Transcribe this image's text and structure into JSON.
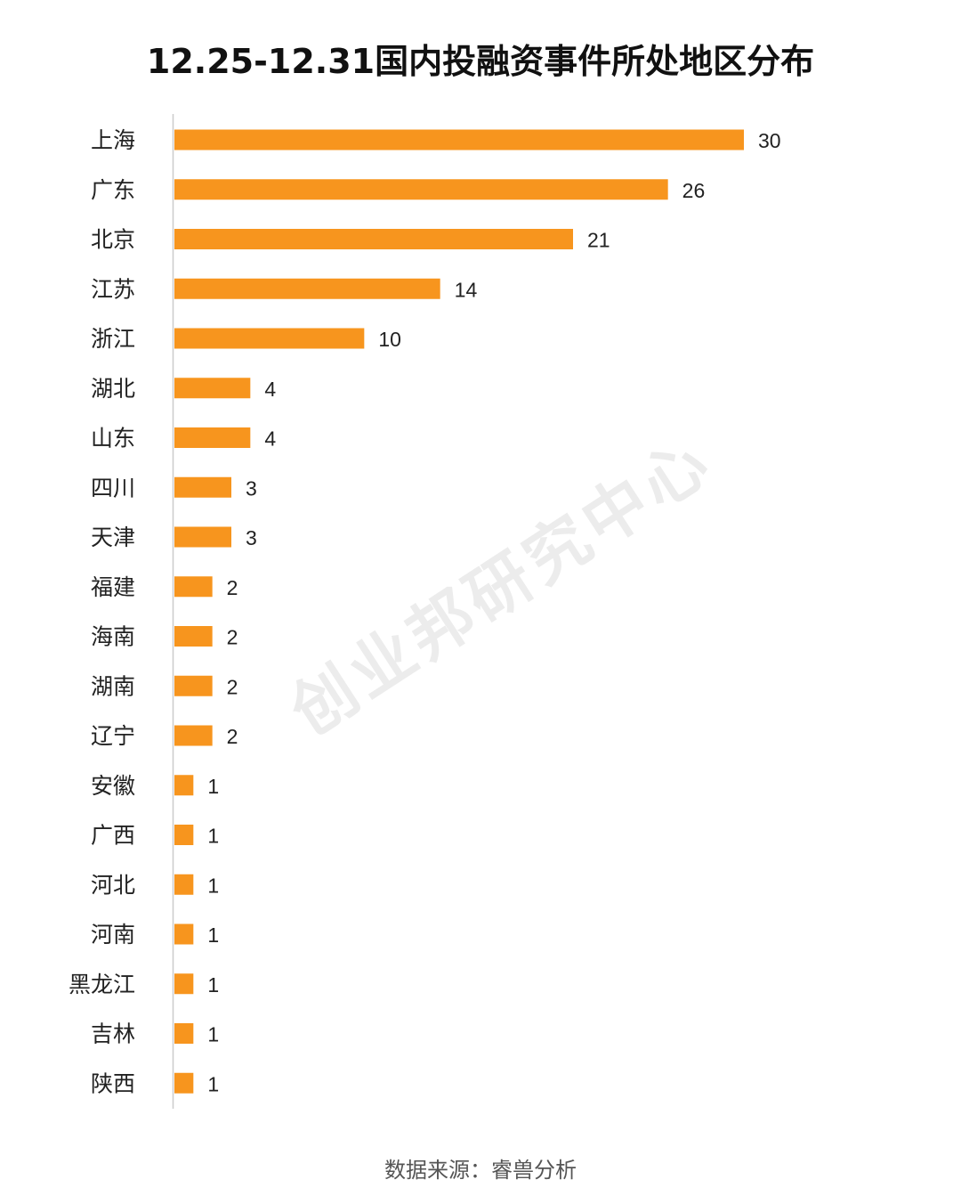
{
  "title": "12.25-12.31国内投融资事件所处地区分布",
  "source": "数据来源：睿兽分析",
  "watermark": "创业邦研究中心",
  "colors": {
    "bar": "#F7951E",
    "axis": "#cccccc",
    "category_text": "#222222",
    "value_text": "#222222"
  },
  "chart_data": {
    "type": "bar",
    "orientation": "horizontal",
    "categories": [
      "上海",
      "广东",
      "北京",
      "江苏",
      "浙江",
      "湖北",
      "山东",
      "四川",
      "天津",
      "福建",
      "海南",
      "湖南",
      "辽宁",
      "安徽",
      "广西",
      "河北",
      "河南",
      "黑龙江",
      "吉林",
      "陕西"
    ],
    "values": [
      30,
      26,
      21,
      14,
      10,
      4,
      4,
      3,
      3,
      2,
      2,
      2,
      2,
      1,
      1,
      1,
      1,
      1,
      1,
      1
    ],
    "title": "12.25-12.31国内投融资事件所处地区分布",
    "xlabel": "",
    "ylabel": "",
    "xlim": [
      0,
      30
    ],
    "grid": false,
    "legend": "none",
    "data_labels": true
  }
}
